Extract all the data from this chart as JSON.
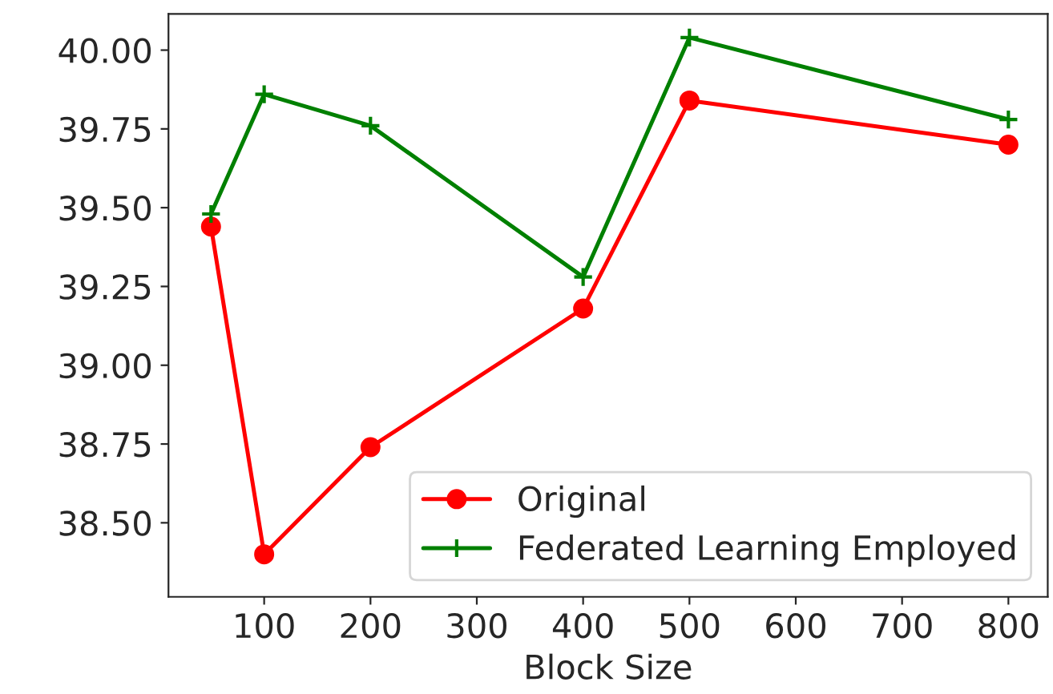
{
  "chart_data": {
    "type": "line",
    "xlabel": "Block Size",
    "x": [
      50,
      100,
      200,
      400,
      500,
      800
    ],
    "series": [
      {
        "name": "Original",
        "color": "#ff0000",
        "marker": "circle",
        "values": [
          39.44,
          38.4,
          38.74,
          39.18,
          39.84,
          39.7
        ]
      },
      {
        "name": "Federated Learning Employed",
        "color": "#008000",
        "marker": "cross",
        "values": [
          39.48,
          39.86,
          39.76,
          39.28,
          40.04,
          39.78
        ]
      }
    ],
    "xlim": [
      10,
      837
    ],
    "xticks": [
      100,
      200,
      300,
      400,
      500,
      600,
      700,
      800
    ],
    "ylim": [
      38.265,
      40.115
    ],
    "yticks": [
      {
        "value": 38.5,
        "label": "38.50"
      },
      {
        "value": 38.75,
        "label": "38.75"
      },
      {
        "value": 39.0,
        "label": "39.00"
      },
      {
        "value": 39.25,
        "label": "39.25"
      },
      {
        "value": 39.5,
        "label": "39.50"
      },
      {
        "value": 39.75,
        "label": "39.75"
      },
      {
        "value": 40.0,
        "label": "40.00"
      }
    ],
    "grid": false,
    "legend": "bottom right"
  }
}
